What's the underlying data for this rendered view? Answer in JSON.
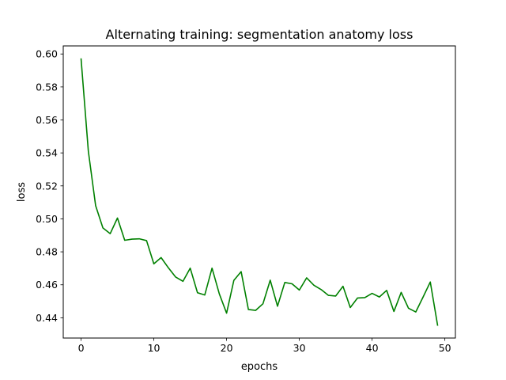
{
  "chart_data": {
    "type": "line",
    "title": "Alternating training: segmentation anatomy loss",
    "xlabel": "epochs",
    "ylabel": "loss",
    "xlim": [
      -2.45,
      51.45
    ],
    "ylim": [
      0.4277,
      0.6049
    ],
    "xticks": [
      0,
      10,
      20,
      30,
      40,
      50
    ],
    "xtick_labels": [
      "0",
      "10",
      "20",
      "30",
      "40",
      "50"
    ],
    "yticks": [
      0.44,
      0.46,
      0.48,
      0.5,
      0.52,
      0.54,
      0.56,
      0.58,
      0.6
    ],
    "ytick_labels": [
      "0.44",
      "0.46",
      "0.48",
      "0.50",
      "0.52",
      "0.54",
      "0.56",
      "0.58",
      "0.60"
    ],
    "grid": false,
    "legend": "none",
    "series": [
      {
        "color": "#008000",
        "x": [
          0,
          1,
          2,
          3,
          4,
          5,
          6,
          7,
          8,
          9,
          10,
          11,
          12,
          13,
          14,
          15,
          16,
          17,
          18,
          19,
          20,
          21,
          22,
          23,
          24,
          25,
          26,
          27,
          28,
          29,
          30,
          31,
          32,
          33,
          34,
          35,
          36,
          37,
          38,
          39,
          40,
          41,
          42,
          43,
          44,
          45,
          46,
          47,
          48,
          49
        ],
        "values": [
          0.597,
          0.541,
          0.508,
          0.4945,
          0.491,
          0.5005,
          0.487,
          0.4877,
          0.4879,
          0.4868,
          0.4727,
          0.4765,
          0.4703,
          0.4647,
          0.4621,
          0.4701,
          0.4552,
          0.4538,
          0.4701,
          0.4545,
          0.4428,
          0.4627,
          0.468,
          0.445,
          0.4445,
          0.4485,
          0.4628,
          0.447,
          0.4614,
          0.4606,
          0.4568,
          0.4642,
          0.4597,
          0.4571,
          0.4536,
          0.4532,
          0.4591,
          0.4462,
          0.452,
          0.4522,
          0.4548,
          0.4526,
          0.4566,
          0.4438,
          0.4554,
          0.4458,
          0.4435,
          0.4525,
          0.4617,
          0.4355
        ]
      }
    ]
  }
}
